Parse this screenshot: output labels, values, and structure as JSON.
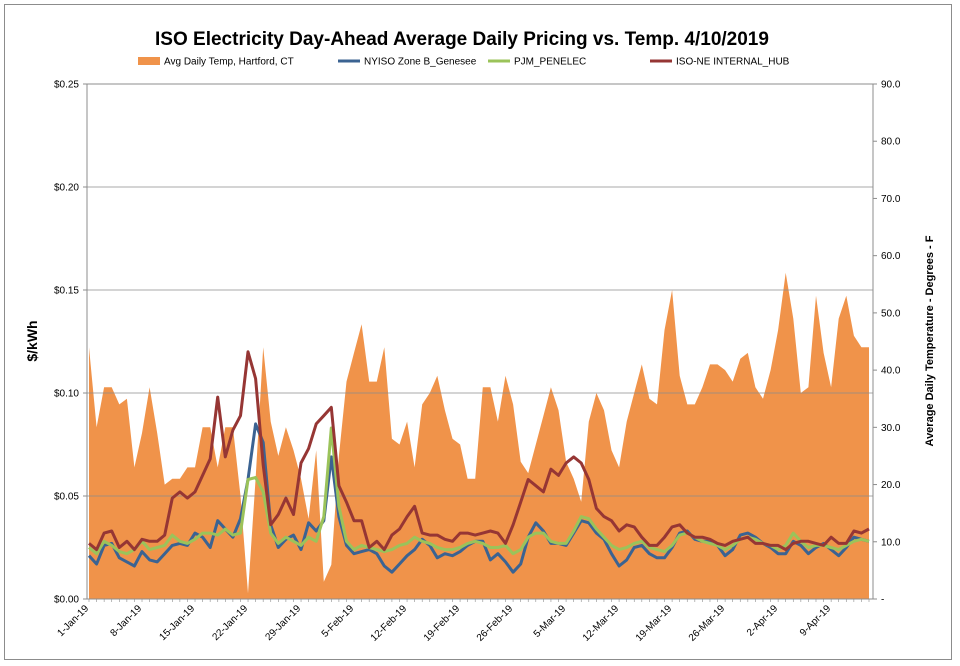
{
  "chart_data": {
    "type": "line",
    "title": "ISO Electricity Day-Ahead Average Daily Pricing vs. Temp. 4/10/2019",
    "ylabel": "$/kWh",
    "y2label": "Average Daily Temperature - Degrees - F",
    "ylim": [
      0,
      0.25
    ],
    "y2lim": [
      0,
      90
    ],
    "y_ticks": [
      "$0.00",
      "$0.05",
      "$0.10",
      "$0.15",
      "$0.20",
      "$0.25"
    ],
    "y2_ticks": [
      "-",
      "10.0",
      "20.0",
      "30.0",
      "40.0",
      "50.0",
      "60.0",
      "70.0",
      "80.0",
      "90.0"
    ],
    "x_tick_labels": [
      "1-Jan-19",
      "8-Jan-19",
      "15-Jan-19",
      "22-Jan-19",
      "29-Jan-19",
      "5-Feb-19",
      "12-Feb-19",
      "19-Feb-19",
      "26-Feb-19",
      "5-Mar-19",
      "12-Mar-19",
      "19-Mar-19",
      "26-Mar-19",
      "2-Apr-19",
      "9-Apr-19"
    ],
    "x_start": "1-Jan-19",
    "x_end": "10-Apr-19",
    "legend_position": "top",
    "grid": true,
    "series": [
      {
        "name": "Avg Daily Temp, Hartford, CT",
        "type": "area",
        "axis": "right",
        "color": "#f0934a",
        "values": [
          44,
          30,
          37,
          37,
          34,
          35,
          23,
          29,
          37,
          29,
          20,
          21,
          21,
          23,
          23,
          30,
          30,
          23,
          30,
          30,
          18,
          1,
          21,
          44,
          31,
          25,
          30,
          26,
          21,
          14,
          26,
          3,
          6,
          25,
          38,
          43,
          48,
          38,
          38,
          44,
          28,
          27,
          31,
          23,
          34,
          36,
          39,
          33,
          28,
          27,
          21,
          21,
          37,
          37,
          31,
          39,
          34,
          24,
          22,
          27,
          32,
          37,
          33,
          24,
          21,
          17,
          31,
          36,
          33,
          26,
          23,
          31,
          36,
          41,
          35,
          34,
          47,
          54,
          39,
          34,
          34,
          37,
          41,
          41,
          40,
          38,
          42,
          43,
          37,
          35,
          40,
          47,
          57,
          49,
          36,
          37,
          53,
          43,
          37,
          49,
          53,
          46,
          44,
          44
        ]
      },
      {
        "name": "NYISO Zone B_Genesee",
        "type": "line",
        "axis": "left",
        "color": "#3b6392",
        "values": [
          0.021,
          0.017,
          0.026,
          0.027,
          0.02,
          0.018,
          0.016,
          0.023,
          0.019,
          0.018,
          0.022,
          0.026,
          0.027,
          0.026,
          0.032,
          0.03,
          0.025,
          0.038,
          0.034,
          0.03,
          0.039,
          0.058,
          0.085,
          0.076,
          0.036,
          0.025,
          0.029,
          0.031,
          0.024,
          0.037,
          0.033,
          0.038,
          0.069,
          0.04,
          0.026,
          0.022,
          0.023,
          0.024,
          0.022,
          0.016,
          0.013,
          0.017,
          0.021,
          0.024,
          0.029,
          0.026,
          0.02,
          0.022,
          0.021,
          0.023,
          0.026,
          0.028,
          0.028,
          0.019,
          0.022,
          0.018,
          0.013,
          0.017,
          0.03,
          0.037,
          0.033,
          0.027,
          0.027,
          0.026,
          0.032,
          0.038,
          0.037,
          0.032,
          0.029,
          0.022,
          0.016,
          0.019,
          0.025,
          0.026,
          0.022,
          0.02,
          0.02,
          0.025,
          0.032,
          0.033,
          0.029,
          0.028,
          0.028,
          0.026,
          0.021,
          0.024,
          0.031,
          0.032,
          0.03,
          0.027,
          0.025,
          0.022,
          0.022,
          0.028,
          0.026,
          0.022,
          0.025,
          0.027,
          0.024,
          0.021,
          0.025,
          0.03,
          0.029,
          0.028
        ]
      },
      {
        "name": "PJM_PENELEC",
        "type": "line",
        "axis": "left",
        "color": "#9bc35a",
        "values": [
          0.025,
          0.022,
          0.028,
          0.026,
          0.023,
          0.022,
          0.024,
          0.028,
          0.024,
          0.025,
          0.026,
          0.031,
          0.028,
          0.027,
          0.029,
          0.032,
          0.032,
          0.031,
          0.034,
          0.031,
          0.032,
          0.058,
          0.059,
          0.052,
          0.032,
          0.027,
          0.03,
          0.028,
          0.026,
          0.03,
          0.028,
          0.04,
          0.083,
          0.045,
          0.028,
          0.024,
          0.026,
          0.025,
          0.024,
          0.023,
          0.024,
          0.026,
          0.027,
          0.03,
          0.028,
          0.027,
          0.025,
          0.024,
          0.024,
          0.025,
          0.027,
          0.028,
          0.027,
          0.025,
          0.025,
          0.026,
          0.022,
          0.024,
          0.03,
          0.032,
          0.032,
          0.028,
          0.027,
          0.027,
          0.033,
          0.04,
          0.039,
          0.034,
          0.03,
          0.026,
          0.024,
          0.025,
          0.027,
          0.028,
          0.025,
          0.024,
          0.023,
          0.026,
          0.031,
          0.032,
          0.03,
          0.028,
          0.027,
          0.026,
          0.024,
          0.026,
          0.029,
          0.03,
          0.029,
          0.027,
          0.026,
          0.024,
          0.026,
          0.032,
          0.028,
          0.025,
          0.026,
          0.026,
          0.025,
          0.024,
          0.026,
          0.028,
          0.029,
          0.028
        ]
      },
      {
        "name": "ISO-NE INTERNAL_HUB",
        "type": "line",
        "axis": "left",
        "color": "#963634",
        "values": [
          0.027,
          0.024,
          0.032,
          0.033,
          0.025,
          0.028,
          0.024,
          0.029,
          0.028,
          0.028,
          0.031,
          0.049,
          0.052,
          0.049,
          0.052,
          0.06,
          0.068,
          0.098,
          0.069,
          0.082,
          0.089,
          0.12,
          0.107,
          0.065,
          0.036,
          0.041,
          0.049,
          0.041,
          0.066,
          0.073,
          0.085,
          0.089,
          0.093,
          0.055,
          0.047,
          0.038,
          0.038,
          0.025,
          0.028,
          0.024,
          0.031,
          0.034,
          0.04,
          0.045,
          0.032,
          0.031,
          0.031,
          0.029,
          0.028,
          0.032,
          0.032,
          0.031,
          0.032,
          0.033,
          0.032,
          0.027,
          0.036,
          0.047,
          0.058,
          0.055,
          0.052,
          0.063,
          0.06,
          0.066,
          0.069,
          0.066,
          0.058,
          0.044,
          0.04,
          0.038,
          0.033,
          0.036,
          0.035,
          0.03,
          0.026,
          0.026,
          0.03,
          0.035,
          0.036,
          0.032,
          0.03,
          0.03,
          0.029,
          0.027,
          0.026,
          0.028,
          0.029,
          0.03,
          0.027,
          0.027,
          0.026,
          0.026,
          0.024,
          0.027,
          0.028,
          0.028,
          0.027,
          0.026,
          0.03,
          0.027,
          0.027,
          0.033,
          0.032,
          0.034
        ]
      }
    ]
  }
}
